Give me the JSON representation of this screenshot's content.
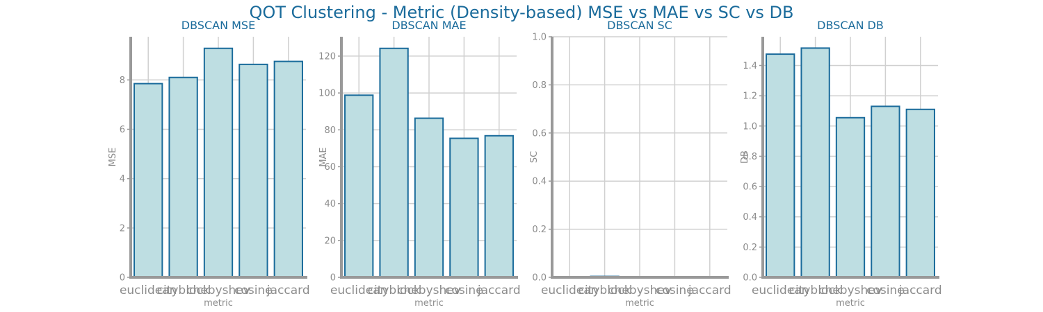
{
  "figure": {
    "title": "QOT Clustering - Metric (Density-based) MSE vs MAE vs SC vs DB"
  },
  "colors": {
    "title": "#1a6b9b",
    "bar_fill": "#bedee2",
    "bar_edge": "#1a6b9b",
    "grid": "#d0d0d0",
    "spine": "#999999",
    "tick_label": "#8c8c8c"
  },
  "chart_data": [
    {
      "type": "bar",
      "title": "DBSCAN MSE",
      "xlabel": "metric",
      "ylabel": "MSE",
      "categories": [
        "euclidean",
        "cityblock",
        "chebyshev",
        "cosine",
        "jaccard"
      ],
      "values": [
        7.85,
        8.1,
        9.28,
        8.63,
        8.75
      ],
      "ylim": [
        0,
        9.75
      ],
      "yticks": [
        0,
        2,
        4,
        6,
        8
      ],
      "ytick_labels": [
        "0",
        "2",
        "4",
        "6",
        "8"
      ],
      "grid": true
    },
    {
      "type": "bar",
      "title": "DBSCAN MAE",
      "xlabel": "metric",
      "ylabel": "MAE",
      "categories": [
        "euclidean",
        "cityblock",
        "chebyshev",
        "cosine",
        "jaccard"
      ],
      "values": [
        98.8,
        124.2,
        86.3,
        75.4,
        76.8
      ],
      "ylim": [
        0,
        130.5
      ],
      "yticks": [
        0,
        20,
        40,
        60,
        80,
        100,
        120
      ],
      "ytick_labels": [
        "0",
        "20",
        "40",
        "60",
        "80",
        "100",
        "120"
      ],
      "grid": true
    },
    {
      "type": "bar",
      "title": "DBSCAN SC",
      "xlabel": "metric",
      "ylabel": "SC",
      "categories": [
        "euclidean",
        "cityblock",
        "chebyshev",
        "cosine",
        "jaccard"
      ],
      "values": [
        0.0,
        0.004,
        0.0,
        0.0,
        0.0
      ],
      "ylim": [
        0,
        1.0
      ],
      "yticks": [
        0,
        0.2,
        0.4,
        0.6,
        0.8,
        1.0
      ],
      "ytick_labels": [
        "0.0",
        "0.2",
        "0.4",
        "0.6",
        "0.8",
        "1.0"
      ],
      "grid": true
    },
    {
      "type": "bar",
      "title": "DBSCAN DB",
      "xlabel": "metric",
      "ylabel": "DB",
      "categories": [
        "euclidean",
        "cityblock",
        "chebyshev",
        "cosine",
        "jaccard"
      ],
      "values": [
        1.475,
        1.515,
        1.055,
        1.13,
        1.11
      ],
      "ylim": [
        0,
        1.59
      ],
      "yticks": [
        0,
        0.2,
        0.4,
        0.6,
        0.8,
        1.0,
        1.2,
        1.4
      ],
      "ytick_labels": [
        "0.0",
        "0.2",
        "0.4",
        "0.6",
        "0.8",
        "1.0",
        "1.2",
        "1.4"
      ],
      "grid": true
    }
  ]
}
